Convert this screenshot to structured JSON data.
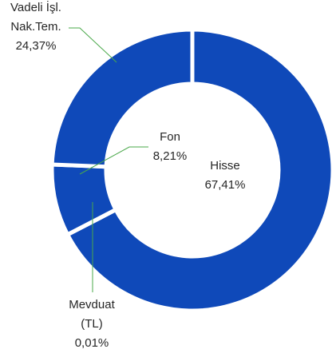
{
  "chart_data": {
    "type": "donut",
    "categories": [
      "Hisse",
      "Mevduat (TL)",
      "Fon",
      "Vadeli İşl. Nak.Tem."
    ],
    "values": [
      67.41,
      0.01,
      8.21,
      24.37
    ],
    "value_labels": [
      "67,41%",
      "0,01%",
      "8,21%",
      "24,37%"
    ],
    "color": "#0f49b9"
  }
}
